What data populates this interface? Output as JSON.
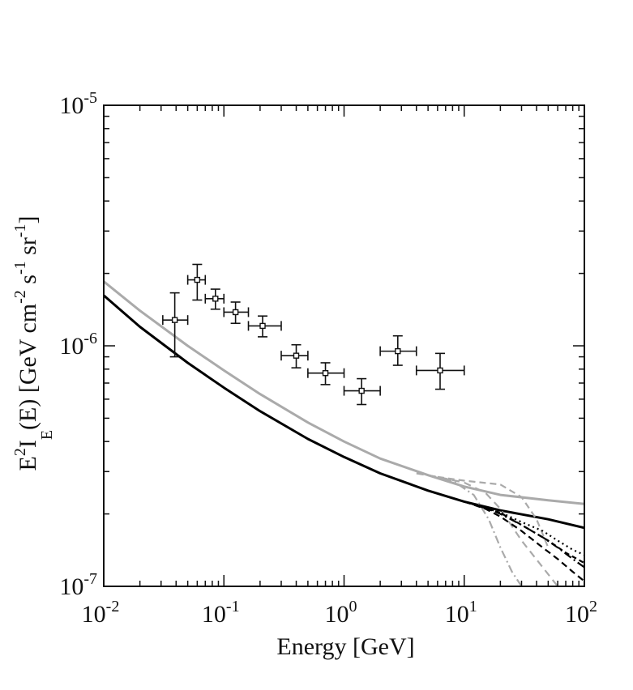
{
  "chart_data": {
    "type": "scatter",
    "title": "",
    "xlabel": "Energy [GeV]",
    "ylabel": {
      "parts": [
        "E",
        "2",
        "I",
        "E",
        "(E) [GeV cm",
        "-2",
        " s",
        "-1",
        " sr",
        "-1",
        "]"
      ]
    },
    "xscale": "log",
    "yscale": "log",
    "xlim": [
      0.01,
      100
    ],
    "ylim": [
      1e-07,
      1e-05
    ],
    "grid": false,
    "xticks": [
      {
        "value": 0.01,
        "base": "10",
        "exp": "-2"
      },
      {
        "value": 0.1,
        "base": "10",
        "exp": "-1"
      },
      {
        "value": 1,
        "base": "10",
        "exp": "0"
      },
      {
        "value": 10,
        "base": "10",
        "exp": "1"
      },
      {
        "value": 100,
        "base": "10",
        "exp": "2"
      }
    ],
    "yticks": [
      {
        "value": 1e-07,
        "base": "10",
        "exp": "-7"
      },
      {
        "value": 1e-06,
        "base": "10",
        "exp": "-6"
      },
      {
        "value": 1e-05,
        "base": "10",
        "exp": "-5"
      }
    ],
    "series": [
      {
        "name": "data points",
        "kind": "errorbar",
        "color": "#111111",
        "points": [
          {
            "x": 0.039,
            "y": 1.28e-06,
            "xlo": 0.031,
            "xhi": 0.05,
            "ylo": 9e-07,
            "yhi": 1.66e-06
          },
          {
            "x": 0.06,
            "y": 1.88e-06,
            "xlo": 0.05,
            "xhi": 0.07,
            "ylo": 1.55e-06,
            "yhi": 2.18e-06
          },
          {
            "x": 0.085,
            "y": 1.57e-06,
            "xlo": 0.07,
            "xhi": 0.1,
            "ylo": 1.42e-06,
            "yhi": 1.72e-06
          },
          {
            "x": 0.125,
            "y": 1.38e-06,
            "xlo": 0.1,
            "xhi": 0.16,
            "ylo": 1.24e-06,
            "yhi": 1.52e-06
          },
          {
            "x": 0.21,
            "y": 1.21e-06,
            "xlo": 0.16,
            "xhi": 0.3,
            "ylo": 1.09e-06,
            "yhi": 1.33e-06
          },
          {
            "x": 0.4,
            "y": 9.1e-07,
            "xlo": 0.3,
            "xhi": 0.5,
            "ylo": 8.1e-07,
            "yhi": 1.01e-06
          },
          {
            "x": 0.7,
            "y": 7.7e-07,
            "xlo": 0.5,
            "xhi": 1.0,
            "ylo": 6.9e-07,
            "yhi": 8.5e-07
          },
          {
            "x": 1.4,
            "y": 6.5e-07,
            "xlo": 1.0,
            "xhi": 2.0,
            "ylo": 5.7e-07,
            "yhi": 7.3e-07
          },
          {
            "x": 2.8,
            "y": 9.5e-07,
            "xlo": 2.0,
            "xhi": 4.0,
            "ylo": 8.3e-07,
            "yhi": 1.1e-06
          },
          {
            "x": 6.3,
            "y": 7.9e-07,
            "xlo": 4.0,
            "xhi": 10.0,
            "ylo": 6.6e-07,
            "yhi": 9.3e-07
          }
        ]
      },
      {
        "name": "gray solid model",
        "kind": "line",
        "color": "#aaaaaa",
        "dash": "",
        "x": [
          0.01,
          0.02,
          0.05,
          0.1,
          0.2,
          0.5,
          1,
          2,
          5,
          10,
          20,
          50,
          100
        ],
        "y": [
          1.85e-06,
          1.4e-06,
          1e-06,
          7.9e-07,
          6.3e-07,
          4.8e-07,
          4e-07,
          3.4e-07,
          2.9e-07,
          2.6e-07,
          2.4e-07,
          2.28e-07,
          2.2e-07
        ]
      },
      {
        "name": "black solid model",
        "kind": "line",
        "color": "#000000",
        "dash": "",
        "x": [
          0.01,
          0.02,
          0.05,
          0.1,
          0.2,
          0.5,
          1,
          2,
          5,
          10,
          20,
          50,
          100
        ],
        "y": [
          1.62e-06,
          1.2e-06,
          8.5e-07,
          6.7e-07,
          5.35e-07,
          4.1e-07,
          3.45e-07,
          2.95e-07,
          2.5e-07,
          2.25e-07,
          2.07e-07,
          1.9e-07,
          1.75e-07
        ]
      },
      {
        "name": "gray dashed cutoff 1",
        "kind": "line",
        "color": "#aaaaaa",
        "dash": "9,6",
        "x": [
          4,
          6,
          10,
          15,
          20,
          30,
          45,
          60
        ],
        "y": [
          2.95e-07,
          2.85e-07,
          2.7e-07,
          2.45e-07,
          2.1e-07,
          1.55e-07,
          1.2e-07,
          1e-07
        ]
      },
      {
        "name": "gray dash-dot cutoff 2",
        "kind": "line",
        "color": "#aaaaaa",
        "dash": "10,4,2,4",
        "x": [
          5,
          8,
          12,
          16,
          20,
          25,
          30
        ],
        "y": [
          2.9e-07,
          2.75e-07,
          2.4e-07,
          1.9e-07,
          1.45e-07,
          1.15e-07,
          1e-07
        ]
      },
      {
        "name": "gray dashed cutoff 3",
        "kind": "line",
        "color": "#aaaaaa",
        "dash": "8,5",
        "x": [
          6,
          10,
          20,
          30,
          40,
          50
        ],
        "y": [
          2.85e-07,
          2.75e-07,
          2.65e-07,
          2.35e-07,
          1.9e-07,
          1.45e-07
        ]
      },
      {
        "name": "black dashed cutoff 1",
        "kind": "line",
        "color": "#000000",
        "dash": "8,5",
        "x": [
          10,
          15,
          20,
          30,
          45,
          60,
          80,
          100
        ],
        "y": [
          2.25e-07,
          2.1e-07,
          1.95e-07,
          1.7e-07,
          1.45e-07,
          1.3e-07,
          1.15e-07,
          1.05e-07
        ]
      },
      {
        "name": "black dash-dot cutoff 2",
        "kind": "line",
        "color": "#000000",
        "dash": "10,4,2,4",
        "x": [
          10,
          15,
          20,
          30,
          45,
          60,
          80,
          100
        ],
        "y": [
          2.25e-07,
          2.12e-07,
          2e-07,
          1.8e-07,
          1.6e-07,
          1.45e-07,
          1.3e-07,
          1.2e-07
        ]
      },
      {
        "name": "black dotted cutoff 3",
        "kind": "line",
        "color": "#000000",
        "dash": "2,4",
        "x": [
          10,
          20,
          30,
          45,
          60,
          80,
          100
        ],
        "y": [
          2.25e-07,
          2.03e-07,
          1.85e-07,
          1.7e-07,
          1.55e-07,
          1.42e-07,
          1.35e-07
        ]
      },
      {
        "name": "black dashed cutoff 4",
        "kind": "line",
        "color": "#000000",
        "dash": "6,4",
        "x": [
          10,
          20,
          30,
          50,
          70,
          100
        ],
        "y": [
          2.25e-07,
          2.02e-07,
          1.8e-07,
          1.55e-07,
          1.38e-07,
          1.25e-07
        ]
      }
    ]
  }
}
